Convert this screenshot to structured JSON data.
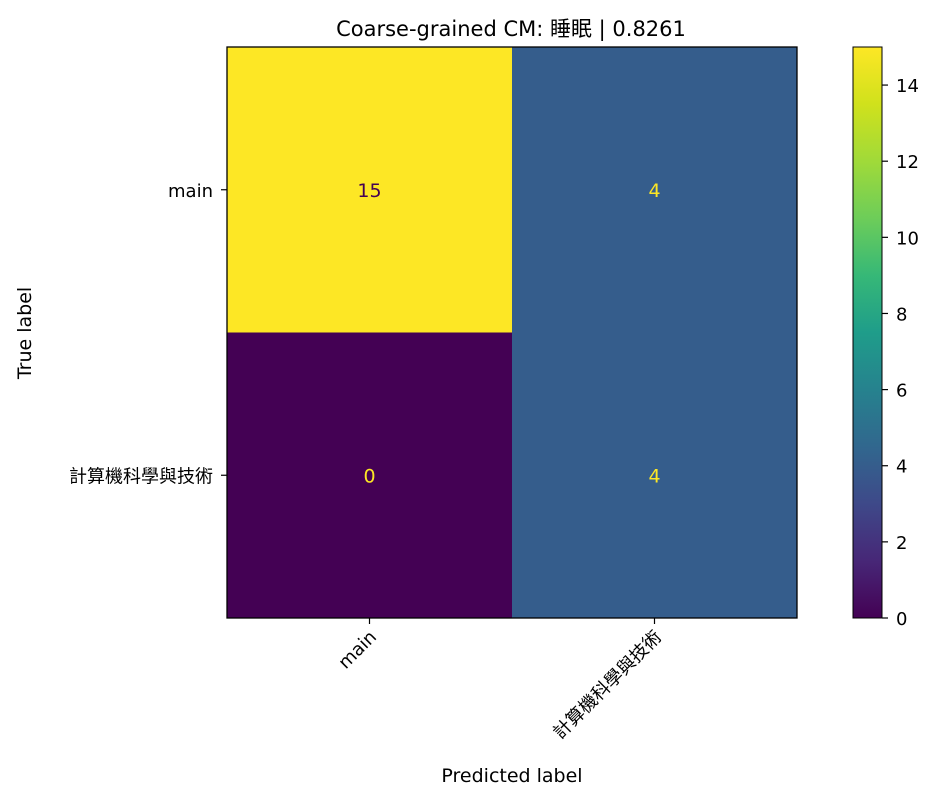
{
  "chart_data": {
    "type": "heatmap",
    "title": "Coarse-grained CM: 睡眠 | 0.8261",
    "xlabel": "Predicted label",
    "ylabel": "True label",
    "x_categories": [
      "main",
      "計算機科學與技術"
    ],
    "y_categories": [
      "main",
      "計算機科學與技術"
    ],
    "matrix": [
      [
        15,
        4
      ],
      [
        0,
        4
      ]
    ],
    "colorbar": {
      "min": 0,
      "max": 15,
      "ticks": [
        0,
        2,
        4,
        6,
        8,
        10,
        12,
        14
      ]
    },
    "colormap": "viridis",
    "text_colors": {
      "on_bright": "#440154",
      "on_dark": "#fde725"
    }
  }
}
